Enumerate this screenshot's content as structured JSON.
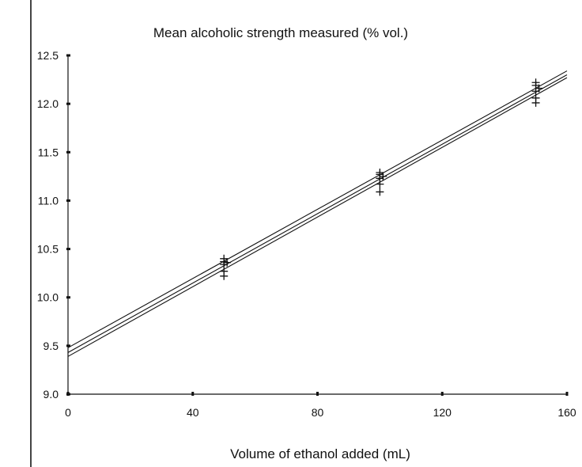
{
  "chart_data": {
    "type": "scatter",
    "title": "Mean alcoholic strength measured (% vol.)",
    "xlabel": "Volume of ethanol added (mL)",
    "ylabel": "",
    "xlim": [
      0,
      160
    ],
    "ylim": [
      9.0,
      12.5
    ],
    "x_ticks": [
      "0",
      "40",
      "80",
      "120",
      "160"
    ],
    "y_ticks": [
      "9.0",
      "9.5",
      "10.0",
      "10.5",
      "11.0",
      "11.5",
      "12.0",
      "12.5"
    ],
    "grid": false,
    "legend": "none",
    "marker": "plus",
    "points": [
      {
        "x": 50,
        "y": 10.4
      },
      {
        "x": 50,
        "y": 10.37
      },
      {
        "x": 50,
        "y": 10.34
      },
      {
        "x": 51,
        "y": 10.36
      },
      {
        "x": 50,
        "y": 10.27
      },
      {
        "x": 50,
        "y": 10.22
      },
      {
        "x": 100,
        "y": 11.29
      },
      {
        "x": 100,
        "y": 11.27
      },
      {
        "x": 101,
        "y": 11.25
      },
      {
        "x": 100,
        "y": 11.23
      },
      {
        "x": 100,
        "y": 11.17
      },
      {
        "x": 100,
        "y": 11.09
      },
      {
        "x": 150,
        "y": 12.22
      },
      {
        "x": 150,
        "y": 12.19
      },
      {
        "x": 151,
        "y": 12.16
      },
      {
        "x": 150,
        "y": 12.13
      },
      {
        "x": 150,
        "y": 12.06
      },
      {
        "x": 150,
        "y": 12.01
      }
    ],
    "lines": [
      {
        "x": [
          0,
          160
        ],
        "y": [
          9.48,
          12.34
        ]
      },
      {
        "x": [
          0,
          160
        ],
        "y": [
          9.43,
          12.3
        ]
      },
      {
        "x": [
          0,
          160
        ],
        "y": [
          9.39,
          12.27
        ]
      }
    ]
  }
}
